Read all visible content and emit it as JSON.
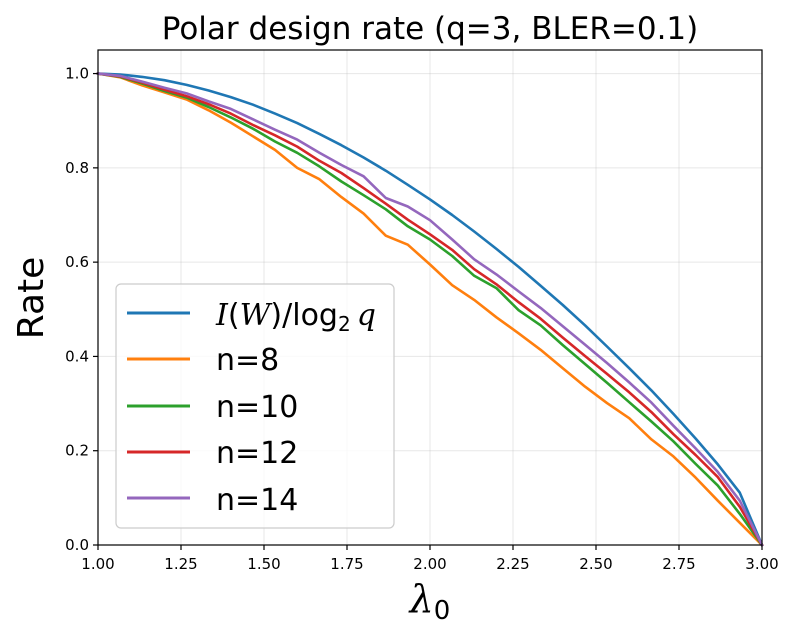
{
  "chart_data": {
    "type": "line",
    "title": "Polar design rate (q=3, BLER=0.1)",
    "xlabel": "λ",
    "xlabel_subscript": "0",
    "ylabel": "Rate",
    "xlim": [
      1.0,
      3.0
    ],
    "ylim": [
      0.0,
      1.05
    ],
    "xticks": [
      "1.00",
      "1.25",
      "1.50",
      "1.75",
      "2.00",
      "2.25",
      "2.50",
      "2.75",
      "3.00"
    ],
    "yticks": [
      "0.0",
      "0.2",
      "0.4",
      "0.6",
      "0.8",
      "1.0"
    ],
    "grid": true,
    "legend_position": "lower-left",
    "legend_entry_0": {
      "pre": "I",
      "paren_open": "(",
      "w": "W",
      "paren_close": ")/log",
      "sub": "2",
      "q": "q"
    },
    "series": [
      {
        "name": "I(W)/log2 q",
        "color": "#1f77b4",
        "x": [
          1.0,
          1.067,
          1.133,
          1.2,
          1.267,
          1.333,
          1.4,
          1.467,
          1.533,
          1.6,
          1.667,
          1.733,
          1.8,
          1.867,
          1.933,
          2.0,
          2.067,
          2.133,
          2.2,
          2.267,
          2.333,
          2.4,
          2.467,
          2.533,
          2.6,
          2.667,
          2.733,
          2.8,
          2.867,
          2.933,
          3.0
        ],
        "y": [
          1.0,
          0.998,
          0.993,
          0.986,
          0.976,
          0.964,
          0.95,
          0.934,
          0.915,
          0.895,
          0.872,
          0.848,
          0.822,
          0.794,
          0.764,
          0.733,
          0.7,
          0.665,
          0.628,
          0.59,
          0.55,
          0.509,
          0.466,
          0.421,
          0.375,
          0.328,
          0.278,
          0.226,
          0.171,
          0.111,
          0.0
        ]
      },
      {
        "name": "n=8",
        "color": "#ff7f0e",
        "x": [
          1.0,
          1.067,
          1.133,
          1.2,
          1.267,
          1.333,
          1.4,
          1.467,
          1.533,
          1.6,
          1.667,
          1.733,
          1.8,
          1.867,
          1.933,
          2.0,
          2.067,
          2.133,
          2.2,
          2.267,
          2.333,
          2.4,
          2.467,
          2.533,
          2.6,
          2.667,
          2.733,
          2.8,
          2.867,
          2.933,
          3.0
        ],
        "y": [
          1.0,
          0.992,
          0.975,
          0.96,
          0.945,
          0.922,
          0.896,
          0.867,
          0.838,
          0.8,
          0.776,
          0.738,
          0.703,
          0.656,
          0.637,
          0.595,
          0.551,
          0.52,
          0.483,
          0.449,
          0.414,
          0.375,
          0.336,
          0.301,
          0.269,
          0.224,
          0.188,
          0.143,
          0.094,
          0.047,
          0.0
        ]
      },
      {
        "name": "n=10",
        "color": "#2ca02c",
        "x": [
          1.0,
          1.067,
          1.133,
          1.2,
          1.267,
          1.333,
          1.4,
          1.467,
          1.533,
          1.6,
          1.667,
          1.733,
          1.8,
          1.867,
          1.933,
          2.0,
          2.067,
          2.133,
          2.2,
          2.267,
          2.333,
          2.4,
          2.467,
          2.533,
          2.6,
          2.667,
          2.733,
          2.8,
          2.867,
          2.933,
          3.0
        ],
        "y": [
          1.0,
          0.993,
          0.979,
          0.963,
          0.949,
          0.929,
          0.907,
          0.883,
          0.856,
          0.832,
          0.803,
          0.771,
          0.742,
          0.712,
          0.676,
          0.648,
          0.613,
          0.571,
          0.545,
          0.498,
          0.466,
          0.424,
          0.384,
          0.344,
          0.303,
          0.262,
          0.22,
          0.172,
          0.126,
          0.066,
          0.0
        ]
      },
      {
        "name": "n=12",
        "color": "#d62728",
        "x": [
          1.0,
          1.067,
          1.133,
          1.2,
          1.267,
          1.333,
          1.4,
          1.467,
          1.533,
          1.6,
          1.667,
          1.733,
          1.8,
          1.867,
          1.933,
          2.0,
          2.067,
          2.133,
          2.2,
          2.267,
          2.333,
          2.4,
          2.467,
          2.533,
          2.6,
          2.667,
          2.733,
          2.8,
          2.867,
          2.933,
          3.0
        ],
        "y": [
          1.0,
          0.994,
          0.981,
          0.966,
          0.952,
          0.935,
          0.915,
          0.891,
          0.869,
          0.845,
          0.815,
          0.789,
          0.757,
          0.724,
          0.69,
          0.659,
          0.626,
          0.585,
          0.553,
          0.515,
          0.48,
          0.44,
          0.401,
          0.363,
          0.324,
          0.282,
          0.235,
          0.191,
          0.144,
          0.081,
          0.0
        ]
      },
      {
        "name": "n=14",
        "color": "#9467bd",
        "x": [
          1.0,
          1.067,
          1.133,
          1.2,
          1.267,
          1.333,
          1.4,
          1.467,
          1.533,
          1.6,
          1.667,
          1.733,
          1.8,
          1.867,
          1.933,
          2.0,
          2.067,
          2.133,
          2.2,
          2.267,
          2.333,
          2.4,
          2.467,
          2.533,
          2.6,
          2.667,
          2.733,
          2.8,
          2.867,
          2.933,
          3.0
        ],
        "y": [
          1.0,
          0.995,
          0.983,
          0.97,
          0.958,
          0.941,
          0.925,
          0.903,
          0.881,
          0.86,
          0.832,
          0.806,
          0.782,
          0.736,
          0.718,
          0.689,
          0.648,
          0.606,
          0.574,
          0.538,
          0.503,
          0.464,
          0.425,
          0.386,
          0.345,
          0.302,
          0.253,
          0.205,
          0.155,
          0.094,
          0.0
        ]
      }
    ]
  }
}
